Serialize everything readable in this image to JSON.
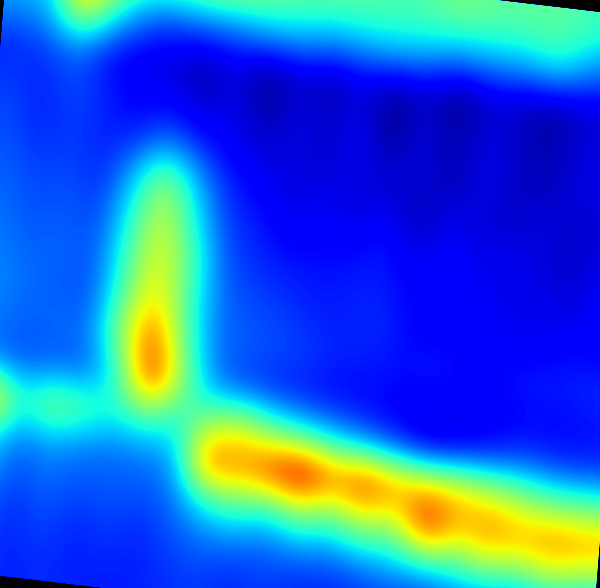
{
  "chart_data": {
    "type": "heatmap",
    "tick_labels": false,
    "cells": [
      [
        0.4,
        0.42,
        0.75,
        0.6,
        0.5,
        0.52,
        0.55,
        0.55,
        0.52,
        0.5,
        0.5,
        0.5,
        0.48,
        0.5,
        0.52,
        0.5,
        0.5,
        0.5,
        0.48,
        0.45
      ],
      [
        0.38,
        0.4,
        0.6,
        0.45,
        0.35,
        0.33,
        0.35,
        0.36,
        0.4,
        0.4,
        0.38,
        0.4,
        0.42,
        0.4,
        0.38,
        0.4,
        0.4,
        0.45,
        0.38,
        0.35
      ],
      [
        0.3,
        0.32,
        0.35,
        0.28,
        0.26,
        0.25,
        0.22,
        0.26,
        0.2,
        0.25,
        0.22,
        0.26,
        0.22,
        0.25,
        0.2,
        0.25,
        0.24,
        0.22,
        0.25,
        0.24
      ],
      [
        0.32,
        0.3,
        0.33,
        0.3,
        0.27,
        0.28,
        0.24,
        0.27,
        0.22,
        0.26,
        0.24,
        0.27,
        0.2,
        0.26,
        0.22,
        0.26,
        0.24,
        0.22,
        0.26,
        0.25
      ],
      [
        0.33,
        0.3,
        0.32,
        0.3,
        0.3,
        0.35,
        0.3,
        0.27,
        0.25,
        0.26,
        0.24,
        0.27,
        0.24,
        0.26,
        0.22,
        0.27,
        0.24,
        0.23,
        0.26,
        0.26
      ],
      [
        0.34,
        0.32,
        0.33,
        0.3,
        0.4,
        0.55,
        0.4,
        0.3,
        0.28,
        0.25,
        0.27,
        0.25,
        0.26,
        0.23,
        0.26,
        0.25,
        0.24,
        0.26,
        0.24,
        0.25
      ],
      [
        0.35,
        0.33,
        0.34,
        0.32,
        0.45,
        0.6,
        0.45,
        0.32,
        0.3,
        0.27,
        0.28,
        0.27,
        0.3,
        0.25,
        0.28,
        0.26,
        0.27,
        0.25,
        0.24,
        0.27
      ],
      [
        0.36,
        0.34,
        0.35,
        0.33,
        0.48,
        0.62,
        0.5,
        0.34,
        0.31,
        0.3,
        0.29,
        0.3,
        0.3,
        0.28,
        0.29,
        0.27,
        0.26,
        0.27,
        0.25,
        0.28
      ],
      [
        0.37,
        0.35,
        0.34,
        0.33,
        0.5,
        0.65,
        0.48,
        0.35,
        0.33,
        0.32,
        0.3,
        0.3,
        0.31,
        0.28,
        0.27,
        0.28,
        0.27,
        0.26,
        0.28,
        0.27
      ],
      [
        0.36,
        0.34,
        0.35,
        0.35,
        0.55,
        0.75,
        0.5,
        0.35,
        0.34,
        0.33,
        0.32,
        0.3,
        0.3,
        0.29,
        0.3,
        0.28,
        0.29,
        0.3,
        0.3,
        0.31
      ],
      [
        0.35,
        0.33,
        0.34,
        0.34,
        0.45,
        0.8,
        0.55,
        0.36,
        0.32,
        0.3,
        0.29,
        0.28,
        0.28,
        0.27,
        0.27,
        0.26,
        0.27,
        0.28,
        0.28,
        0.29
      ],
      [
        0.7,
        0.45,
        0.55,
        0.5,
        0.45,
        0.5,
        0.45,
        0.55,
        0.6,
        0.5,
        0.45,
        0.4,
        0.35,
        0.3,
        0.25,
        0.28,
        0.3,
        0.32,
        0.3,
        0.3
      ],
      [
        0.45,
        0.35,
        0.38,
        0.36,
        0.35,
        0.36,
        0.38,
        0.75,
        0.7,
        0.78,
        0.85,
        0.72,
        0.78,
        0.7,
        0.68,
        0.65,
        0.6,
        0.55,
        0.5,
        0.5
      ],
      [
        0.38,
        0.32,
        0.35,
        0.33,
        0.34,
        0.33,
        0.35,
        0.45,
        0.5,
        0.45,
        0.55,
        0.5,
        0.6,
        0.55,
        0.8,
        0.65,
        0.72,
        0.68,
        0.72,
        0.7
      ],
      [
        0.34,
        0.3,
        0.33,
        0.3,
        0.32,
        0.3,
        0.33,
        0.35,
        0.35,
        0.34,
        0.36,
        0.35,
        0.38,
        0.4,
        0.42,
        0.45,
        0.5,
        0.48,
        0.55,
        0.5
      ],
      [
        0.32,
        0.3,
        0.31,
        0.3,
        0.3,
        0.3,
        0.31,
        0.32,
        0.3,
        0.32,
        0.3,
        0.3,
        0.3,
        0.32,
        0.3,
        0.33,
        0.32,
        0.3,
        0.33,
        0.32
      ]
    ]
  }
}
